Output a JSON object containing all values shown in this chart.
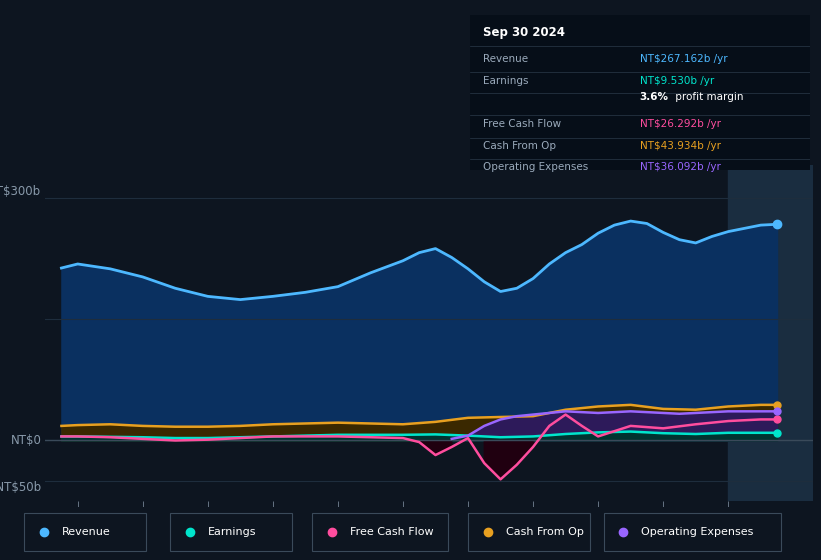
{
  "bg_color": "#0d1520",
  "plot_bg_color": "#0d1520",
  "grid_color": "#1e2d3d",
  "revenue_color": "#4db8ff",
  "earnings_color": "#00e5cc",
  "fcf_color": "#ff4d9e",
  "cashop_color": "#e8a020",
  "opex_color": "#9966ff",
  "revenue_fill": "#0a3060",
  "cashop_fill": "#3a2800",
  "opex_fill": "#2d1a5a",
  "earnings_fill": "#003330",
  "xlim_start": 2013.5,
  "xlim_end": 2025.3,
  "ylim_min": -75,
  "ylim_max": 340,
  "xtick_years": [
    2014,
    2015,
    2016,
    2017,
    2018,
    2019,
    2020,
    2021,
    2022,
    2023,
    2024
  ],
  "shaded_region_start": 2024.0,
  "shaded_region_color": "#1a2d40",
  "revenue_data": {
    "years": [
      2013.75,
      2014.0,
      2014.5,
      2015.0,
      2015.5,
      2016.0,
      2016.5,
      2017.0,
      2017.5,
      2018.0,
      2018.5,
      2019.0,
      2019.25,
      2019.5,
      2019.75,
      2020.0,
      2020.25,
      2020.5,
      2020.75,
      2021.0,
      2021.25,
      2021.5,
      2021.75,
      2022.0,
      2022.25,
      2022.5,
      2022.75,
      2023.0,
      2023.25,
      2023.5,
      2023.75,
      2024.0,
      2024.25,
      2024.5,
      2024.75
    ],
    "values": [
      213,
      218,
      212,
      202,
      188,
      178,
      174,
      178,
      183,
      190,
      207,
      222,
      232,
      237,
      226,
      212,
      196,
      184,
      188,
      200,
      218,
      232,
      242,
      256,
      266,
      271,
      268,
      257,
      248,
      244,
      252,
      258,
      262,
      266,
      267
    ]
  },
  "earnings_data": {
    "years": [
      2013.75,
      2014.0,
      2014.5,
      2015.0,
      2015.5,
      2016.0,
      2016.5,
      2017.0,
      2017.5,
      2018.0,
      2018.5,
      2019.0,
      2019.5,
      2020.0,
      2020.5,
      2021.0,
      2021.5,
      2022.0,
      2022.5,
      2023.0,
      2023.5,
      2024.0,
      2024.5,
      2024.75
    ],
    "values": [
      5,
      5,
      4.5,
      4,
      3,
      3,
      4,
      5,
      6,
      7,
      7,
      7,
      7.5,
      6,
      4,
      5,
      8,
      10,
      11,
      9,
      8,
      9.5,
      9.5,
      9.5
    ]
  },
  "fcf_data": {
    "years": [
      2013.75,
      2014.0,
      2014.5,
      2015.0,
      2015.5,
      2016.0,
      2016.5,
      2017.0,
      2017.5,
      2018.0,
      2018.5,
      2019.0,
      2019.25,
      2019.5,
      2019.75,
      2020.0,
      2020.25,
      2020.5,
      2020.75,
      2021.0,
      2021.25,
      2021.5,
      2021.75,
      2022.0,
      2022.5,
      2023.0,
      2023.5,
      2024.0,
      2024.5,
      2024.75
    ],
    "values": [
      5,
      5,
      4,
      2,
      0,
      1,
      3,
      5,
      5,
      5,
      4,
      3,
      -2,
      -18,
      -8,
      3,
      -28,
      -48,
      -30,
      -8,
      18,
      32,
      18,
      5,
      18,
      15,
      20,
      24,
      26,
      26
    ]
  },
  "cashop_data": {
    "years": [
      2013.75,
      2014.0,
      2014.5,
      2015.0,
      2015.5,
      2016.0,
      2016.5,
      2017.0,
      2017.5,
      2018.0,
      2018.5,
      2019.0,
      2019.5,
      2020.0,
      2020.5,
      2021.0,
      2021.5,
      2022.0,
      2022.5,
      2023.0,
      2023.5,
      2024.0,
      2024.5,
      2024.75
    ],
    "values": [
      18,
      19,
      20,
      18,
      17,
      17,
      18,
      20,
      21,
      22,
      21,
      20,
      23,
      28,
      29,
      30,
      38,
      42,
      44,
      39,
      38,
      42,
      44,
      44
    ]
  },
  "opex_data": {
    "years": [
      2019.75,
      2020.0,
      2020.25,
      2020.5,
      2020.75,
      2021.0,
      2021.25,
      2021.5,
      2021.75,
      2022.0,
      2022.25,
      2022.5,
      2022.75,
      2023.0,
      2023.25,
      2023.5,
      2023.75,
      2024.0,
      2024.25,
      2024.5,
      2024.75
    ],
    "values": [
      2,
      6,
      18,
      26,
      30,
      32,
      34,
      36,
      35,
      34,
      35,
      36,
      35,
      34,
      33,
      34,
      35,
      36,
      36,
      36,
      36
    ]
  },
  "info_box": {
    "title": "Sep 30 2024",
    "rows": [
      {
        "label": "Revenue",
        "value": "NT$267.162b /yr",
        "value_color": "#4db8ff"
      },
      {
        "label": "Earnings",
        "value": "NT$9.530b /yr",
        "value_color": "#00e5cc"
      },
      {
        "label": "",
        "value": "3.6% profit margin",
        "value_color": "#ffffff"
      },
      {
        "label": "Free Cash Flow",
        "value": "NT$26.292b /yr",
        "value_color": "#ff4d9e"
      },
      {
        "label": "Cash From Op",
        "value": "NT$43.934b /yr",
        "value_color": "#e8a020"
      },
      {
        "label": "Operating Expenses",
        "value": "NT$36.092b /yr",
        "value_color": "#9966ff"
      }
    ]
  },
  "legend_items": [
    {
      "label": "Revenue",
      "color": "#4db8ff"
    },
    {
      "label": "Earnings",
      "color": "#00e5cc"
    },
    {
      "label": "Free Cash Flow",
      "color": "#ff4d9e"
    },
    {
      "label": "Cash From Op",
      "color": "#e8a020"
    },
    {
      "label": "Operating Expenses",
      "color": "#9966ff"
    }
  ]
}
